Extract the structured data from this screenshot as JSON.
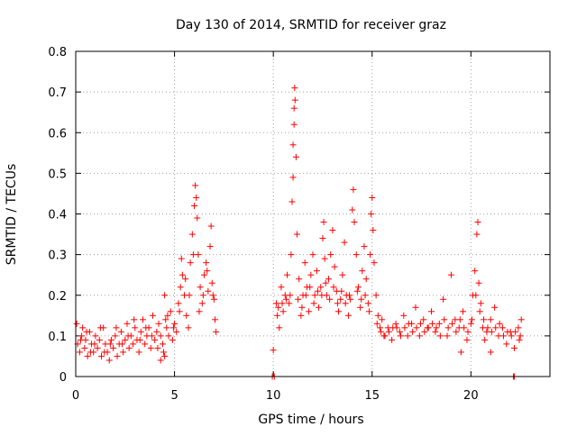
{
  "chart_data": {
    "type": "scatter",
    "title": "Day 130 of 2014, SRMTID for receiver graz",
    "xlabel": "GPS time / hours",
    "ylabel": "SRMTID / TECUs",
    "xlim": [
      0,
      24
    ],
    "ylim": [
      0,
      0.8
    ],
    "xticks": [
      0,
      5,
      10,
      15,
      20
    ],
    "xtick_labels": [
      "0",
      "5",
      "10",
      "15",
      "20"
    ],
    "yticks": [
      0,
      0.1,
      0.2,
      0.3,
      0.4,
      0.5,
      0.6,
      0.7,
      0.8
    ],
    "ytick_labels": [
      "0",
      "0.1",
      "0.2",
      "0.3",
      "0.4",
      "0.5",
      "0.6",
      "0.7",
      "0.8"
    ],
    "grid": true,
    "marker": "+",
    "color": "#ff0000",
    "series": [
      {
        "name": "SRMTID",
        "points": [
          [
            0.1,
            0.08
          ],
          [
            0.2,
            0.06
          ],
          [
            0.3,
            0.1
          ],
          [
            0.35,
            0.12
          ],
          [
            0.45,
            0.07
          ],
          [
            0.5,
            0.09
          ],
          [
            0.6,
            0.05
          ],
          [
            0.7,
            0.11
          ],
          [
            0.8,
            0.08
          ],
          [
            0.9,
            0.06
          ],
          [
            1.0,
            0.1
          ],
          [
            1.1,
            0.07
          ],
          [
            1.2,
            0.09
          ],
          [
            1.3,
            0.05
          ],
          [
            1.4,
            0.12
          ],
          [
            1.5,
            0.08
          ],
          [
            1.6,
            0.06
          ],
          [
            1.7,
            0.04
          ],
          [
            1.8,
            0.09
          ],
          [
            1.9,
            0.07
          ],
          [
            2.0,
            0.1
          ],
          [
            2.1,
            0.05
          ],
          [
            2.2,
            0.08
          ],
          [
            2.3,
            0.11
          ],
          [
            2.4,
            0.06
          ],
          [
            2.5,
            0.09
          ],
          [
            2.6,
            0.13
          ],
          [
            2.7,
            0.07
          ],
          [
            2.8,
            0.1
          ],
          [
            2.9,
            0.08
          ],
          [
            3.0,
            0.12
          ],
          [
            3.1,
            0.09
          ],
          [
            3.2,
            0.06
          ],
          [
            3.3,
            0.11
          ],
          [
            3.4,
            0.14
          ],
          [
            3.5,
            0.08
          ],
          [
            3.6,
            0.1
          ],
          [
            3.7,
            0.12
          ],
          [
            3.8,
            0.07
          ],
          [
            3.9,
            0.15
          ],
          [
            4.0,
            0.09
          ],
          [
            4.1,
            0.11
          ],
          [
            4.2,
            0.13
          ],
          [
            4.3,
            0.1
          ],
          [
            4.4,
            0.08
          ],
          [
            4.5,
            0.05
          ],
          [
            4.55,
            0.14
          ],
          [
            4.6,
            0.12
          ],
          [
            4.7,
            0.1
          ],
          [
            4.8,
            0.16
          ],
          [
            4.9,
            0.09
          ],
          [
            5.0,
            0.13
          ],
          [
            5.1,
            0.11
          ],
          [
            5.2,
            0.18
          ],
          [
            5.3,
            0.22
          ],
          [
            5.35,
            0.29
          ],
          [
            5.4,
            0.25
          ],
          [
            5.5,
            0.2
          ],
          [
            5.6,
            0.15
          ],
          [
            5.7,
            0.12
          ],
          [
            5.8,
            0.28
          ],
          [
            5.9,
            0.35
          ],
          [
            6.0,
            0.42
          ],
          [
            6.05,
            0.47
          ],
          [
            6.1,
            0.44
          ],
          [
            6.15,
            0.39
          ],
          [
            6.2,
            0.3
          ],
          [
            6.3,
            0.22
          ],
          [
            6.4,
            0.18
          ],
          [
            6.5,
            0.25
          ],
          [
            6.6,
            0.28
          ],
          [
            6.7,
            0.21
          ],
          [
            6.8,
            0.32
          ],
          [
            6.85,
            0.37
          ],
          [
            6.9,
            0.23
          ],
          [
            7.0,
            0.19
          ],
          [
            7.05,
            0.14
          ],
          [
            7.1,
            0.11
          ],
          [
            4.3,
            0.04
          ],
          [
            4.5,
            0.2
          ],
          [
            10.0,
            0.065
          ],
          [
            10.15,
            0.18
          ],
          [
            10.2,
            0.15
          ],
          [
            10.3,
            0.12
          ],
          [
            10.4,
            0.22
          ],
          [
            10.5,
            0.16
          ],
          [
            10.6,
            0.2
          ],
          [
            10.7,
            0.25
          ],
          [
            10.8,
            0.18
          ],
          [
            10.9,
            0.3
          ],
          [
            10.95,
            0.43
          ],
          [
            11.0,
            0.49
          ],
          [
            11.0,
            0.57
          ],
          [
            11.05,
            0.62
          ],
          [
            11.05,
            0.66
          ],
          [
            11.08,
            0.71
          ],
          [
            11.1,
            0.68
          ],
          [
            11.15,
            0.54
          ],
          [
            11.2,
            0.35
          ],
          [
            11.3,
            0.24
          ],
          [
            11.4,
            0.15
          ],
          [
            11.5,
            0.2
          ],
          [
            11.6,
            0.28
          ],
          [
            11.7,
            0.22
          ],
          [
            11.8,
            0.16
          ],
          [
            11.9,
            0.25
          ],
          [
            12.0,
            0.3
          ],
          [
            12.1,
            0.2
          ],
          [
            12.2,
            0.26
          ],
          [
            12.3,
            0.17
          ],
          [
            12.4,
            0.22
          ],
          [
            12.5,
            0.34
          ],
          [
            12.55,
            0.38
          ],
          [
            12.6,
            0.29
          ],
          [
            12.7,
            0.2
          ],
          [
            12.8,
            0.24
          ],
          [
            12.9,
            0.3
          ],
          [
            13.0,
            0.36
          ],
          [
            13.1,
            0.27
          ],
          [
            13.2,
            0.21
          ],
          [
            13.3,
            0.16
          ],
          [
            13.4,
            0.19
          ],
          [
            13.5,
            0.25
          ],
          [
            13.6,
            0.33
          ],
          [
            13.7,
            0.2
          ],
          [
            13.8,
            0.15
          ],
          [
            13.9,
            0.19
          ],
          [
            14.0,
            0.41
          ],
          [
            14.05,
            0.46
          ],
          [
            14.1,
            0.38
          ],
          [
            14.2,
            0.3
          ],
          [
            14.3,
            0.22
          ],
          [
            14.4,
            0.17
          ],
          [
            14.5,
            0.26
          ],
          [
            14.6,
            0.32
          ],
          [
            14.7,
            0.24
          ],
          [
            14.8,
            0.18
          ],
          [
            14.9,
            0.3
          ],
          [
            14.95,
            0.4
          ],
          [
            15.0,
            0.44
          ],
          [
            15.05,
            0.36
          ],
          [
            15.1,
            0.28
          ],
          [
            15.2,
            0.2
          ],
          [
            15.3,
            0.15
          ],
          [
            15.4,
            0.12
          ],
          [
            15.5,
            0.14
          ],
          [
            15.6,
            0.1
          ],
          [
            15.8,
            0.12
          ],
          [
            16.0,
            0.09
          ],
          [
            16.2,
            0.13
          ],
          [
            16.4,
            0.11
          ],
          [
            16.6,
            0.15
          ],
          [
            16.8,
            0.1
          ],
          [
            17.0,
            0.13
          ],
          [
            17.2,
            0.17
          ],
          [
            17.4,
            0.1
          ],
          [
            17.6,
            0.14
          ],
          [
            17.8,
            0.12
          ],
          [
            18.0,
            0.16
          ],
          [
            18.2,
            0.11
          ],
          [
            18.4,
            0.13
          ],
          [
            18.6,
            0.19
          ],
          [
            18.8,
            0.1
          ],
          [
            19.0,
            0.25
          ],
          [
            19.2,
            0.14
          ],
          [
            19.4,
            0.12
          ],
          [
            19.6,
            0.16
          ],
          [
            19.8,
            0.09
          ],
          [
            20.0,
            0.13
          ],
          [
            20.1,
            0.2
          ],
          [
            20.2,
            0.26
          ],
          [
            20.3,
            0.35
          ],
          [
            20.35,
            0.38
          ],
          [
            20.4,
            0.23
          ],
          [
            20.5,
            0.18
          ],
          [
            20.6,
            0.12
          ],
          [
            20.7,
            0.09
          ],
          [
            20.8,
            0.11
          ],
          [
            21.0,
            0.14
          ],
          [
            21.2,
            0.17
          ],
          [
            21.4,
            0.1
          ],
          [
            21.6,
            0.12
          ],
          [
            21.8,
            0.08
          ],
          [
            22.0,
            0.11
          ],
          [
            22.2,
            0.07
          ],
          [
            22.4,
            0.12
          ],
          [
            22.5,
            0.1
          ],
          [
            22.55,
            0.14
          ],
          [
            21.0,
            0.06
          ],
          [
            19.5,
            0.06
          ],
          [
            0.05,
            0.13
          ],
          [
            0.25,
            0.09
          ],
          [
            0.55,
            0.11
          ],
          [
            0.75,
            0.06
          ],
          [
            0.95,
            0.08
          ],
          [
            1.25,
            0.12
          ],
          [
            1.45,
            0.06
          ],
          [
            1.75,
            0.08
          ],
          [
            2.05,
            0.12
          ],
          [
            2.35,
            0.08
          ],
          [
            2.65,
            0.1
          ],
          [
            2.95,
            0.14
          ],
          [
            3.25,
            0.09
          ],
          [
            3.55,
            0.12
          ],
          [
            3.85,
            0.1
          ],
          [
            4.15,
            0.07
          ],
          [
            4.45,
            0.06
          ],
          [
            4.65,
            0.15
          ],
          [
            4.95,
            0.12
          ],
          [
            5.25,
            0.16
          ],
          [
            5.55,
            0.24
          ],
          [
            5.75,
            0.2
          ],
          [
            5.95,
            0.3
          ],
          [
            6.25,
            0.16
          ],
          [
            6.45,
            0.2
          ],
          [
            6.65,
            0.26
          ],
          [
            6.95,
            0.2
          ],
          [
            10.25,
            0.17
          ],
          [
            10.45,
            0.18
          ],
          [
            10.65,
            0.19
          ],
          [
            10.85,
            0.2
          ],
          [
            11.25,
            0.19
          ],
          [
            11.45,
            0.17
          ],
          [
            11.65,
            0.2
          ],
          [
            11.85,
            0.22
          ],
          [
            12.05,
            0.18
          ],
          [
            12.25,
            0.21
          ],
          [
            12.45,
            0.2
          ],
          [
            12.65,
            0.23
          ],
          [
            12.85,
            0.19
          ],
          [
            13.05,
            0.22
          ],
          [
            13.25,
            0.18
          ],
          [
            13.45,
            0.21
          ],
          [
            13.65,
            0.18
          ],
          [
            13.85,
            0.2
          ],
          [
            14.25,
            0.21
          ],
          [
            14.45,
            0.19
          ],
          [
            14.65,
            0.2
          ],
          [
            14.85,
            0.16
          ],
          [
            15.25,
            0.13
          ],
          [
            15.45,
            0.11
          ],
          [
            15.65,
            0.1
          ],
          [
            15.85,
            0.11
          ],
          [
            16.05,
            0.12
          ],
          [
            16.25,
            0.12
          ],
          [
            16.45,
            0.1
          ],
          [
            16.65,
            0.12
          ],
          [
            16.85,
            0.13
          ],
          [
            17.05,
            0.11
          ],
          [
            17.25,
            0.12
          ],
          [
            17.45,
            0.13
          ],
          [
            17.65,
            0.11
          ],
          [
            17.85,
            0.12
          ],
          [
            18.05,
            0.13
          ],
          [
            18.25,
            0.12
          ],
          [
            18.45,
            0.1
          ],
          [
            18.65,
            0.14
          ],
          [
            18.85,
            0.12
          ],
          [
            19.05,
            0.13
          ],
          [
            19.25,
            0.11
          ],
          [
            19.45,
            0.14
          ],
          [
            19.65,
            0.12
          ],
          [
            19.85,
            0.11
          ],
          [
            20.05,
            0.14
          ],
          [
            20.25,
            0.2
          ],
          [
            20.45,
            0.16
          ],
          [
            20.65,
            0.14
          ],
          [
            20.85,
            0.12
          ],
          [
            21.05,
            0.11
          ],
          [
            21.25,
            0.12
          ],
          [
            21.45,
            0.13
          ],
          [
            21.65,
            0.1
          ],
          [
            21.85,
            0.11
          ],
          [
            22.05,
            0.1
          ],
          [
            22.25,
            0.11
          ],
          [
            22.45,
            0.09
          ],
          [
            9.95,
            0.0
          ],
          [
            10.05,
            0.0
          ],
          [
            22.15,
            0.0
          ],
          [
            22.2,
            0.0
          ]
        ]
      }
    ]
  }
}
